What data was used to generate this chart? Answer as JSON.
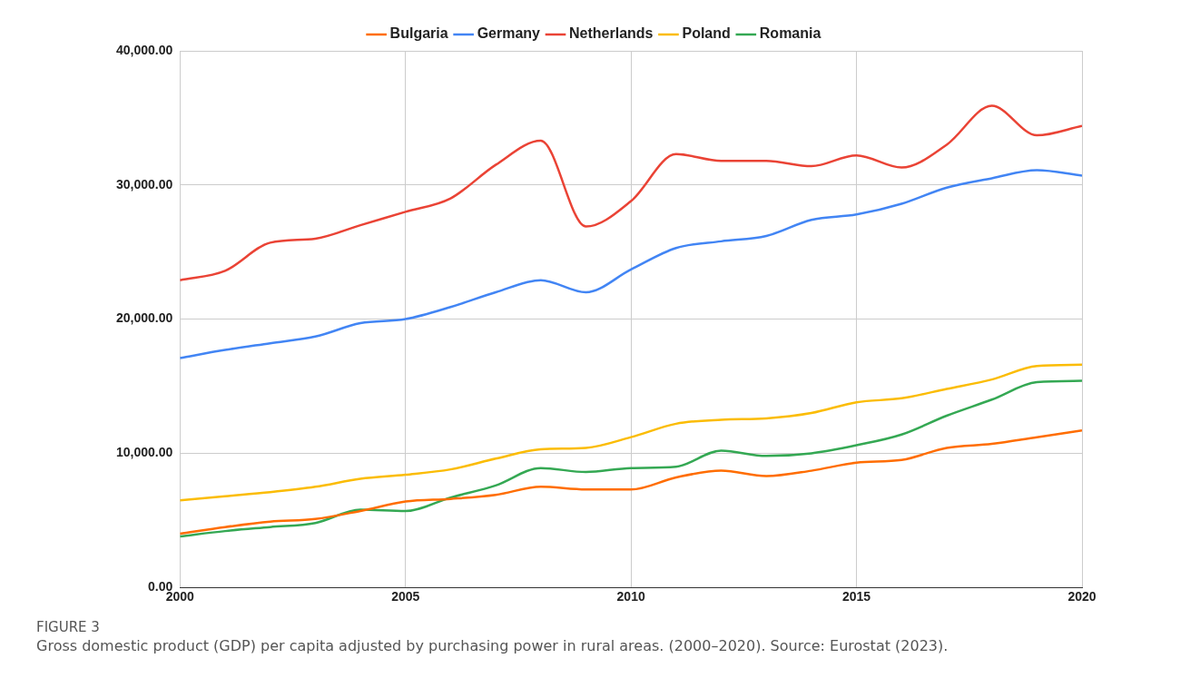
{
  "chart_data": {
    "type": "line",
    "x": [
      2000,
      2001,
      2002,
      2003,
      2004,
      2005,
      2006,
      2007,
      2008,
      2009,
      2010,
      2011,
      2012,
      2013,
      2014,
      2015,
      2016,
      2017,
      2018,
      2019,
      2020
    ],
    "series": [
      {
        "name": "Bulgaria",
        "color": "#ff6d01",
        "values": [
          4000,
          4500,
          4900,
          5100,
          5700,
          6400,
          6600,
          6900,
          7500,
          7300,
          7300,
          8200,
          8700,
          8300,
          8700,
          9300,
          9500,
          10400,
          10700,
          11200,
          11700
        ]
      },
      {
        "name": "Germany",
        "color": "#4285f4",
        "values": [
          17100,
          17700,
          18200,
          18700,
          19700,
          20000,
          20900,
          22000,
          22900,
          22000,
          23700,
          25300,
          25800,
          26200,
          27400,
          27800,
          28600,
          29800,
          30500,
          31100,
          30700
        ]
      },
      {
        "name": "Netherlands",
        "color": "#ea4335",
        "values": [
          22900,
          23600,
          25700,
          26000,
          27000,
          28000,
          29000,
          31500,
          33300,
          26900,
          28800,
          32300,
          31800,
          31800,
          31400,
          32200,
          31300,
          33000,
          35900,
          33700,
          34400
        ]
      },
      {
        "name": "Poland",
        "color": "#fbbc04",
        "values": [
          6500,
          6800,
          7100,
          7500,
          8100,
          8400,
          8800,
          9600,
          10300,
          10400,
          11200,
          12200,
          12500,
          12600,
          13000,
          13800,
          14100,
          14800,
          15500,
          16500,
          16600
        ]
      },
      {
        "name": "Romania",
        "color": "#34a853",
        "values": [
          3800,
          4200,
          4500,
          4800,
          5800,
          5700,
          6700,
          7600,
          8900,
          8600,
          8900,
          9000,
          10200,
          9800,
          10000,
          10600,
          11400,
          12800,
          14000,
          15300,
          15400
        ]
      }
    ],
    "xlim": [
      2000,
      2020
    ],
    "xticks": [
      2000,
      2005,
      2010,
      2015,
      2020
    ],
    "ylim": [
      0,
      40000
    ],
    "yticks": [
      {
        "value": 0,
        "label": "0.00"
      },
      {
        "value": 10000,
        "label": "10,000.00"
      },
      {
        "value": 20000,
        "label": "20,000.00"
      },
      {
        "value": 30000,
        "label": "30,000.00"
      },
      {
        "value": 40000,
        "label": "40,000.00"
      }
    ],
    "grid": true,
    "legend": "top",
    "marker": "none",
    "line_style": "solid",
    "annotations": [
      "FIGURE 3",
      "Gross domestic product (GDP) per capita adjusted by purchasing power in rural areas. (2000–2020). Source: Eurostat (2023)."
    ]
  }
}
